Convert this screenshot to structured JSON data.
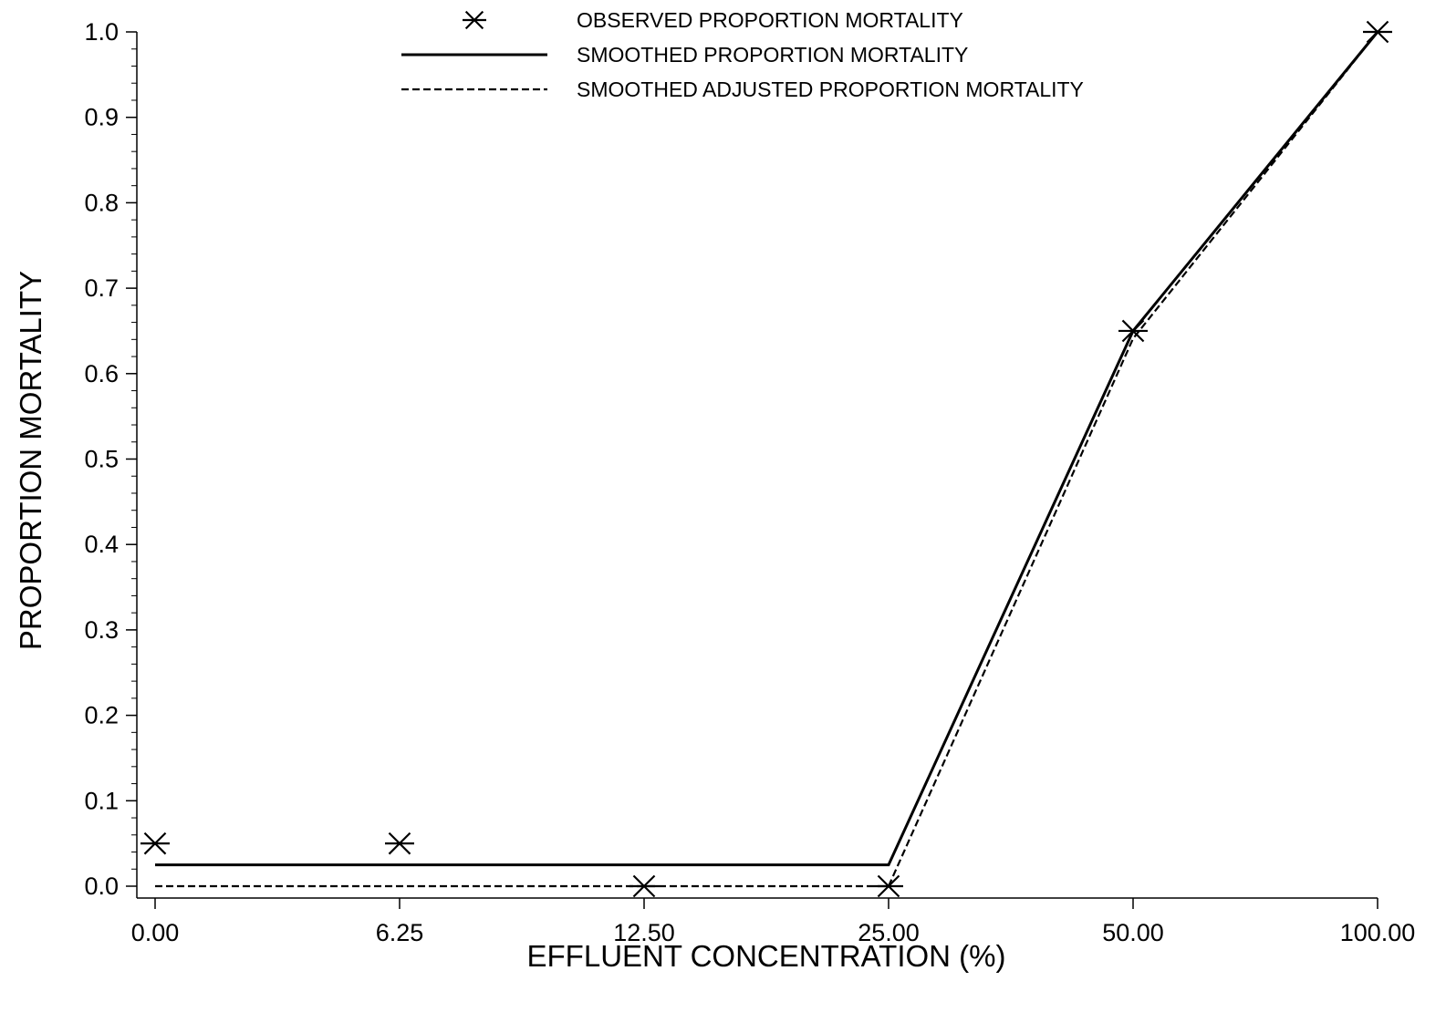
{
  "chart_data": {
    "type": "line",
    "xlabel": "EFFLUENT CONCENTRATION (%)",
    "ylabel": "PROPORTION MORTALITY",
    "categories": [
      "0.00",
      "6.25",
      "12.50",
      "25.00",
      "50.00",
      "100.00"
    ],
    "ylim": [
      0.0,
      1.0
    ],
    "yticks": [
      "0.0",
      "0.1",
      "0.2",
      "0.3",
      "0.4",
      "0.5",
      "0.6",
      "0.7",
      "0.8",
      "0.9",
      "1.0"
    ],
    "series": [
      {
        "name": "OBSERVED PROPORTION MORTALITY",
        "style": "marker",
        "values": [
          0.05,
          0.05,
          0.0,
          0.0,
          0.65,
          1.0
        ]
      },
      {
        "name": "SMOOTHED PROPORTION MORTALITY",
        "style": "solid",
        "values": [
          0.025,
          0.025,
          0.025,
          0.025,
          0.65,
          1.0
        ]
      },
      {
        "name": "SMOOTHED ADJUSTED PROPORTION MORTALITY",
        "style": "dashed",
        "values": [
          0.0,
          0.0,
          0.0,
          0.0,
          0.641,
          1.0
        ]
      }
    ],
    "legend_position": "top-center",
    "line_color": "#000000"
  }
}
